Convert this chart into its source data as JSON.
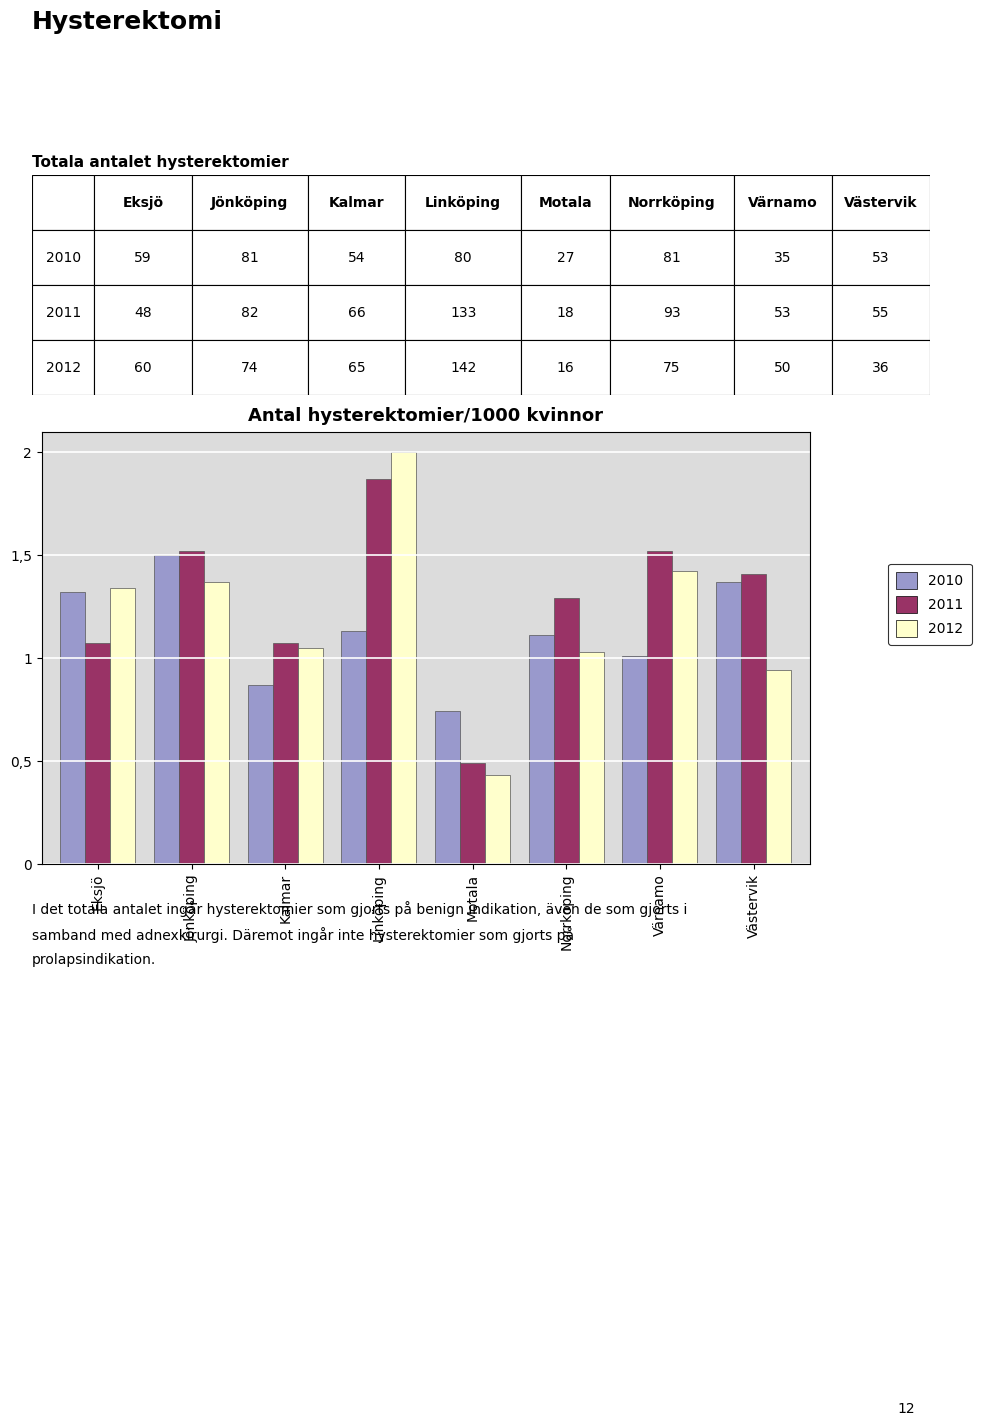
{
  "title": "Hysterektomi",
  "table_title": "Totala antalet hysterektomier",
  "table_headers": [
    "",
    "Eksjö",
    "Jönköping",
    "Kalmar",
    "Linköping",
    "Motala",
    "Norrköping",
    "Värnamo",
    "Västervik"
  ],
  "table_rows": [
    [
      "2010",
      "59",
      "81",
      "54",
      "80",
      "27",
      "81",
      "35",
      "53"
    ],
    [
      "2011",
      "48",
      "82",
      "66",
      "133",
      "18",
      "93",
      "53",
      "55"
    ],
    [
      "2012",
      "60",
      "74",
      "65",
      "142",
      "16",
      "75",
      "50",
      "36"
    ]
  ],
  "chart_title": "Antal hysterektomier/1000 kvinnor",
  "categories": [
    "Eksjö",
    "Jönköping",
    "Kalmar",
    "Linköping",
    "Motala",
    "Norrköping",
    "Värnamo",
    "Västervik"
  ],
  "series": {
    "2010": [
      1.32,
      1.5,
      0.87,
      1.13,
      0.74,
      1.11,
      1.01,
      1.37
    ],
    "2011": [
      1.07,
      1.52,
      1.07,
      1.87,
      0.49,
      1.29,
      1.52,
      1.41
    ],
    "2012": [
      1.34,
      1.37,
      1.05,
      2.0,
      0.43,
      1.03,
      1.42,
      0.94
    ]
  },
  "colors": {
    "2010": "#9999CC",
    "2011": "#993366",
    "2012": "#FFFFCC"
  },
  "ylim": [
    0,
    2.1
  ],
  "yticks": [
    0,
    0.5,
    1,
    1.5,
    2
  ],
  "ytick_labels": [
    "0",
    "0,5",
    "1",
    "1,5",
    "2"
  ],
  "legend_labels": [
    "2010",
    "2011",
    "2012"
  ],
  "footnote_line1": "I det totala antalet ingår hysterektomier som gjorts på benign indikation, även de som gjorts i",
  "footnote_line2": "samband med adnexkirurgi. Däremot ingår inte hysterektomier som gjorts på",
  "footnote_line3": "prolapsindikation.",
  "page_number": "12",
  "col_widths": [
    0.07,
    0.11,
    0.13,
    0.11,
    0.13,
    0.1,
    0.14,
    0.11,
    0.11
  ]
}
